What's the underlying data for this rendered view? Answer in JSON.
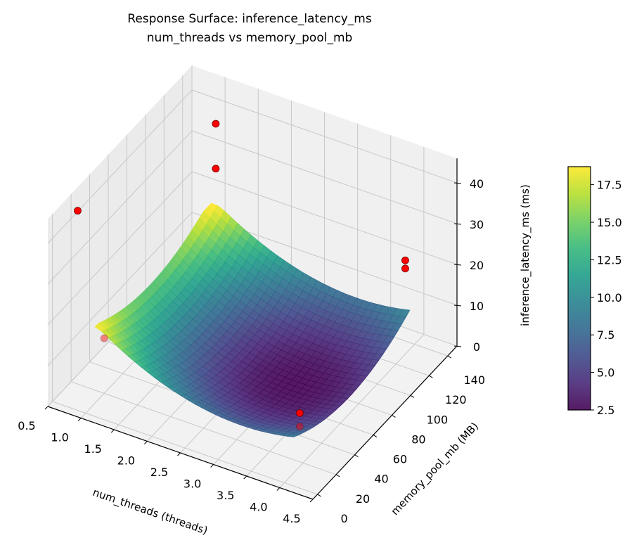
{
  "chart_data": {
    "type": "surface3d",
    "title": "Response Surface: inference_latency_ms",
    "subtitle": "num_threads vs memory_pool_mb",
    "xlabel": "num_threads (threads)",
    "ylabel": "memory_pool_mb (MB)",
    "zlabel": "inference_latency_ms (ms)",
    "xlim": [
      0.5,
      4.5
    ],
    "ylim": [
      -5,
      150
    ],
    "zlim": [
      0,
      46
    ],
    "x_ticks": [
      "0.5",
      "1.0",
      "1.5",
      "2.0",
      "2.5",
      "3.0",
      "3.5",
      "4.0",
      "4.5"
    ],
    "y_ticks": [
      "0",
      "20",
      "40",
      "60",
      "80",
      "100",
      "120",
      "140"
    ],
    "z_ticks": [
      "0",
      "10",
      "20",
      "30",
      "40"
    ],
    "surface": {
      "x_range": [
        1.0,
        4.0
      ],
      "y_range": [
        10,
        135
      ],
      "model": "quadratic",
      "min": 2.5,
      "max": 18.7,
      "colormap": "viridis"
    },
    "colorbar": {
      "range": [
        2.5,
        18.7
      ],
      "ticks": [
        "2.5",
        "5.0",
        "7.5",
        "10.0",
        "12.5",
        "15.0",
        "17.5"
      ]
    },
    "points": [
      {
        "x": 0.6,
        "y": 20,
        "z": 42.5
      },
      {
        "x": 1.0,
        "y": 140,
        "z": 37
      },
      {
        "x": 1.0,
        "y": 140,
        "z": 26
      },
      {
        "x": 4.0,
        "y": 130,
        "z": 23
      },
      {
        "x": 4.0,
        "y": 130,
        "z": 21
      },
      {
        "x": 1.0,
        "y": 20,
        "z": 13.5
      },
      {
        "x": 3.6,
        "y": 45,
        "z": 3.9
      },
      {
        "x": 3.6,
        "y": 45,
        "z": 0.6
      }
    ],
    "point_color": "#ff0000"
  }
}
